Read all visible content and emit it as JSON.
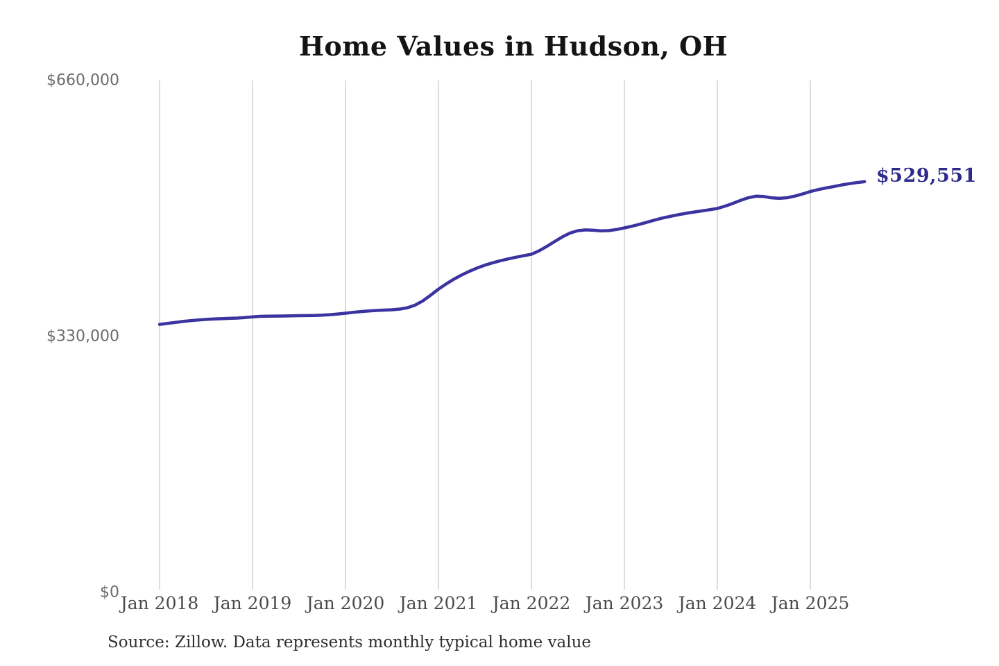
{
  "title": "Home Values in Hudson, OH",
  "annotation": {
    "end_value_label": "$529,551"
  },
  "source_note": "Source: Zillow. Data represents monthly typical home value",
  "colors": {
    "line": "#3b34a0",
    "annotation_text": "#2d2b8c",
    "gridline": "#c9c9c9",
    "y_label": "#6b6b6b",
    "x_label": "#4a4a4a",
    "title": "#141414",
    "source": "#2e2e2e",
    "background": "#ffffff"
  },
  "chart_data": {
    "type": "line",
    "title": "Home Values in Hudson, OH",
    "xlabel": "",
    "ylabel": "",
    "ylim": [
      0,
      660000
    ],
    "y_ticks": [
      0,
      330000,
      660000
    ],
    "y_tick_labels": [
      "$0",
      "$330,000",
      "$660,000"
    ],
    "x_tick_labels": [
      "Jan 2018",
      "Jan 2019",
      "Jan 2020",
      "Jan 2021",
      "Jan 2022",
      "Jan 2023",
      "Jan 2024",
      "Jan 2025"
    ],
    "frequency": "monthly",
    "x_start": "Jan 2018",
    "x_end": "Aug 2025",
    "grid": "vertical-only",
    "legend": false,
    "last_value": 529551,
    "last_value_label": "$529,551",
    "series": [
      {
        "name": "Typical home value",
        "values": [
          345600,
          346800,
          348100,
          349300,
          350400,
          351300,
          352000,
          352500,
          352900,
          353300,
          353700,
          354400,
          355300,
          355900,
          356200,
          356300,
          356400,
          356600,
          356800,
          356900,
          357100,
          357500,
          358100,
          359000,
          360000,
          361100,
          362100,
          362900,
          363500,
          364000,
          364400,
          365300,
          367000,
          370500,
          376000,
          383300,
          391000,
          397800,
          403900,
          409300,
          414100,
          418300,
          421900,
          425000,
          427700,
          430000,
          432100,
          434100,
          436000,
          440500,
          446200,
          452400,
          458400,
          463300,
          466400,
          467400,
          466900,
          466200,
          466500,
          467900,
          470000,
          472200,
          474700,
          477500,
          480300,
          482800,
          485000,
          487000,
          488800,
          490400,
          491900,
          493400,
          495000,
          498000,
          501500,
          505500,
          508900,
          510800,
          510400,
          508800,
          508100,
          508900,
          510900,
          513700,
          516800,
          519300,
          521400,
          523300,
          525200,
          526900,
          528400,
          529551
        ]
      }
    ]
  }
}
